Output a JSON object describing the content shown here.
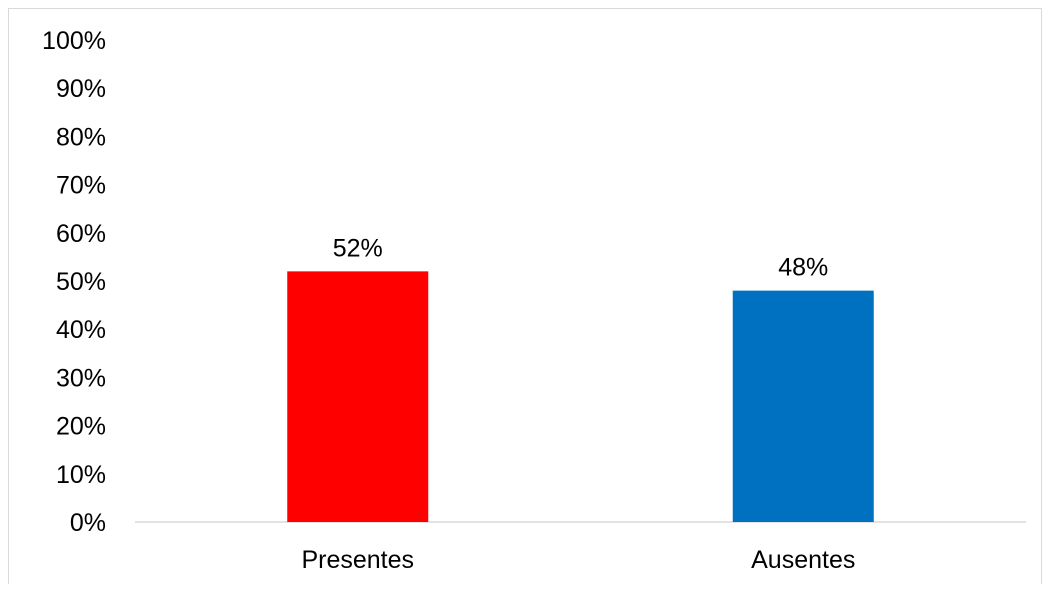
{
  "chart_data": {
    "type": "bar",
    "categories": [
      "Presentes",
      "Ausentes"
    ],
    "values": [
      52,
      48
    ],
    "data_labels": [
      "52%",
      "48%"
    ],
    "bar_colors": [
      "#ff0000",
      "#0070c0"
    ],
    "ylim": [
      0,
      100
    ],
    "y_ticks": [
      0,
      10,
      20,
      30,
      40,
      50,
      60,
      70,
      80,
      90,
      100
    ],
    "y_tick_labels": [
      "0%",
      "10%",
      "20%",
      "30%",
      "40%",
      "50%",
      "60%",
      "70%",
      "80%",
      "90%",
      "100%"
    ],
    "grid": false,
    "legend": "none",
    "axis_color": "#d9d9d9"
  }
}
